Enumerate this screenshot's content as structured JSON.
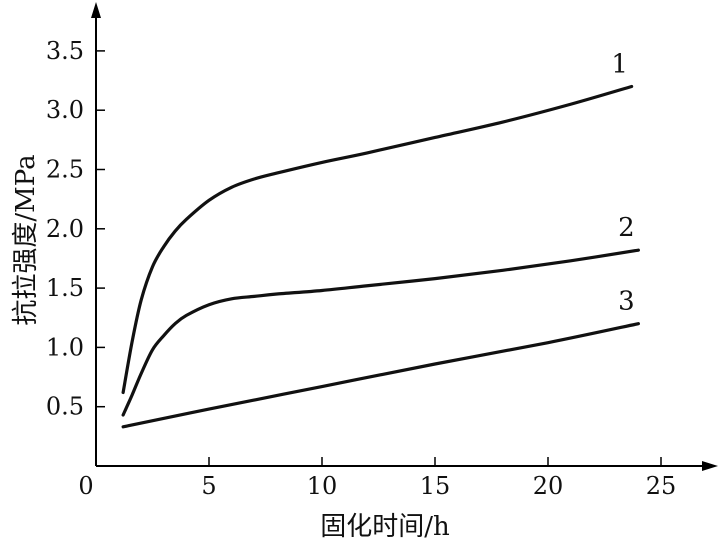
{
  "chart_data": {
    "type": "line",
    "title": "",
    "xlabel": "固化时间/h",
    "ylabel": "抗拉强度/MPa",
    "xlim": [
      0,
      27
    ],
    "ylim": [
      0,
      3.85
    ],
    "xticks": [
      0,
      5,
      10,
      15,
      20,
      25
    ],
    "xtick_labels": [
      "0",
      "5",
      "10",
      "15",
      "20",
      "25"
    ],
    "yticks": [
      0.5,
      1.0,
      1.5,
      2.0,
      2.5,
      3.0,
      3.5
    ],
    "ytick_labels": [
      "0.5",
      "1.0",
      "1.5",
      "2.0",
      "2.5",
      "3.0",
      "3.5"
    ],
    "grid": false,
    "series": [
      {
        "name": "1",
        "x": [
          1.2,
          1.6,
          2.0,
          2.5,
          3.0,
          3.5,
          4.0,
          5.0,
          6.0,
          7.0,
          8.0,
          10.0,
          12.0,
          15.0,
          18.0,
          21.0,
          23.7
        ],
        "y": [
          0.62,
          1.05,
          1.4,
          1.68,
          1.85,
          1.98,
          2.08,
          2.24,
          2.35,
          2.42,
          2.47,
          2.56,
          2.64,
          2.77,
          2.9,
          3.05,
          3.2
        ]
      },
      {
        "name": "2",
        "x": [
          1.2,
          1.6,
          2.0,
          2.5,
          3.0,
          3.5,
          4.0,
          5.0,
          6.0,
          7.0,
          8.0,
          10.0,
          12.0,
          15.0,
          18.0,
          21.0,
          24.0
        ],
        "y": [
          0.43,
          0.6,
          0.78,
          0.98,
          1.1,
          1.2,
          1.27,
          1.36,
          1.41,
          1.43,
          1.45,
          1.48,
          1.52,
          1.58,
          1.65,
          1.73,
          1.82
        ]
      },
      {
        "name": "3",
        "x": [
          1.2,
          5.0,
          10.0,
          15.0,
          20.0,
          24.0
        ],
        "y": [
          0.33,
          0.48,
          0.67,
          0.86,
          1.04,
          1.2
        ]
      }
    ]
  }
}
